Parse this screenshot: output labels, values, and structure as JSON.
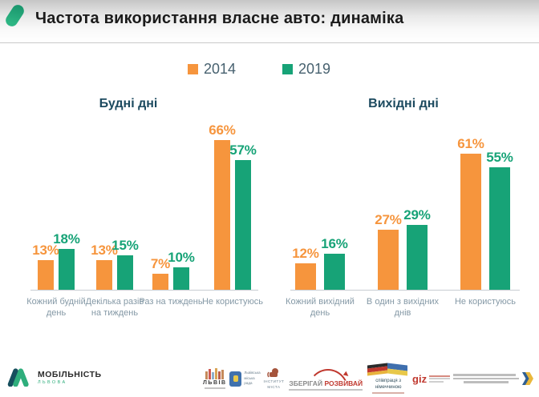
{
  "header": {
    "title": "Частота використання власне авто: динаміка"
  },
  "legend": {
    "items": [
      {
        "label": "2014",
        "color": "#F6953D"
      },
      {
        "label": "2019",
        "color": "#17A377"
      }
    ]
  },
  "chart_data": [
    {
      "type": "bar",
      "title": "Будні дні",
      "categories": [
        "Кожний будній день",
        "Декілька разів на тиждень",
        "Раз на тиждень",
        "Не користуюсь"
      ],
      "series": [
        {
          "name": "2014",
          "color": "#F6953D",
          "values": [
            13,
            13,
            7,
            66
          ]
        },
        {
          "name": "2019",
          "color": "#17A377",
          "values": [
            18,
            15,
            10,
            57
          ]
        }
      ],
      "value_suffix": "%",
      "ylim": [
        0,
        75
      ],
      "grid": false,
      "legend_position": "top"
    },
    {
      "type": "bar",
      "title": "Вихідні дні",
      "categories": [
        "Кожний вихідний день",
        "В один з вихідних днів",
        "Не користуюсь"
      ],
      "series": [
        {
          "name": "2014",
          "color": "#F6953D",
          "values": [
            12,
            27,
            61
          ]
        },
        {
          "name": "2019",
          "color": "#17A377",
          "values": [
            16,
            29,
            55
          ]
        }
      ],
      "value_suffix": "%",
      "ylim": [
        0,
        75
      ],
      "grid": false,
      "legend_position": "top"
    }
  ],
  "footer": {
    "brand": {
      "title": "МОБІЛЬНІСТЬ",
      "subtitle": "ЛЬВОВА"
    },
    "lviv_city": {
      "label": "ЛЬВІВ"
    },
    "city_council": {
      "line1": "Львівська",
      "line2": "міська",
      "line3": "рада"
    },
    "city_institute": {
      "line1": "ІНСТИТУТ",
      "line2": "МІСТА"
    },
    "keep_develop": {
      "word1": "ЗБЕРІГАЙ",
      "word2": "РОЗВИВАЙ"
    },
    "germany_coop": {
      "line1": "співпраця з",
      "line2": "німеччиною"
    },
    "giz": {
      "label": "giz"
    }
  }
}
